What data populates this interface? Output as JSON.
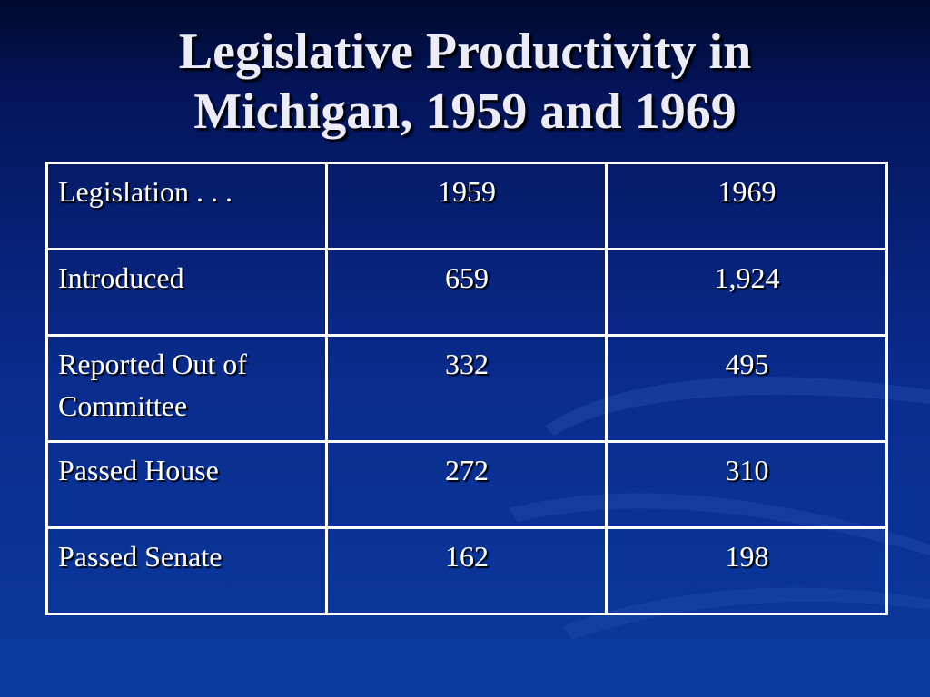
{
  "slide": {
    "title_line1": "Legislative Productivity in",
    "title_line2": "Michigan, 1959 and 1969",
    "background_color": "#0a2c8e",
    "text_color": "#ffffff"
  },
  "table": {
    "headers": [
      "Legislation . . .",
      "1959",
      "1969"
    ],
    "rows": [
      {
        "label": "Introduced",
        "y1959": "659",
        "y1969": "1,924"
      },
      {
        "label": "Reported Out of Committee",
        "y1959": "332",
        "y1969": "495"
      },
      {
        "label": "Passed House",
        "y1959": "272",
        "y1969": "310"
      },
      {
        "label": "Passed Senate",
        "y1959": "162",
        "y1969": "198"
      }
    ]
  }
}
